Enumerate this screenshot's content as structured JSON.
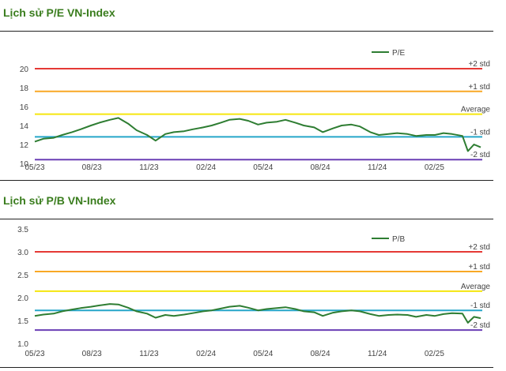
{
  "titles": {
    "pe": "Lịch sử P/E VN-Index",
    "pb": "Lịch sử P/B VN-Index"
  },
  "colors": {
    "series": "#2e7d32",
    "plus2": "#e53935",
    "plus1": "#f9a825",
    "average": "#f5e60f",
    "minus1": "#26a6c9",
    "minus2": "#6a3fb5"
  },
  "chart_data": [
    {
      "type": "line",
      "title": "Lịch sử P/E VN-Index",
      "x_tick_labels": [
        "05/23",
        "08/23",
        "11/23",
        "02/24",
        "05/24",
        "08/24",
        "11/24",
        "02/25"
      ],
      "y_ticks": [
        "20",
        "18",
        "16",
        "14",
        "12",
        "10"
      ],
      "ylim": [
        10,
        21
      ],
      "legend": "top-right",
      "series": [
        {
          "name": "P/E",
          "x": [
            "2023-05-01",
            "2023-05-15",
            "2023-06-01",
            "2023-06-15",
            "2023-07-01",
            "2023-07-15",
            "2023-08-01",
            "2023-08-15",
            "2023-09-01",
            "2023-09-15",
            "2023-10-01",
            "2023-10-15",
            "2023-11-01",
            "2023-11-15",
            "2023-12-01",
            "2023-12-15",
            "2024-01-01",
            "2024-01-15",
            "2024-02-01",
            "2024-02-15",
            "2024-03-01",
            "2024-03-15",
            "2024-04-01",
            "2024-04-15",
            "2024-05-01",
            "2024-05-15",
            "2024-06-01",
            "2024-06-15",
            "2024-07-01",
            "2024-07-15",
            "2024-08-01",
            "2024-08-15",
            "2024-09-01",
            "2024-09-15",
            "2024-10-01",
            "2024-10-15",
            "2024-11-01",
            "2024-11-15",
            "2024-12-01",
            "2024-12-15",
            "2025-01-01",
            "2025-01-15",
            "2025-02-01",
            "2025-02-15",
            "2025-03-01",
            "2025-03-15",
            "2025-04-01",
            "2025-04-10",
            "2025-04-20",
            "2025-05-01"
          ],
          "values": [
            12.3,
            12.6,
            12.7,
            13.0,
            13.3,
            13.6,
            14.0,
            14.3,
            14.6,
            14.8,
            14.2,
            13.5,
            13.0,
            12.4,
            13.1,
            13.3,
            13.4,
            13.6,
            13.8,
            14.0,
            14.3,
            14.6,
            14.7,
            14.5,
            14.1,
            14.3,
            14.4,
            14.6,
            14.3,
            14.0,
            13.8,
            13.3,
            13.7,
            14.0,
            14.1,
            13.9,
            13.3,
            13.0,
            13.1,
            13.2,
            13.1,
            12.9,
            13.0,
            13.0,
            13.2,
            13.1,
            12.9,
            11.3,
            12.0,
            11.7
          ]
        }
      ],
      "reference_lines": [
        {
          "label": "+2 std",
          "value": 20.0
        },
        {
          "label": "+1 std",
          "value": 17.6
        },
        {
          "label": "Average",
          "value": 15.2
        },
        {
          "label": "-1 std",
          "value": 12.8
        },
        {
          "label": "-2 std",
          "value": 10.4
        }
      ]
    },
    {
      "type": "line",
      "title": "Lịch sử P/B VN-Index",
      "x_tick_labels": [
        "05/23",
        "08/23",
        "11/23",
        "02/24",
        "05/24",
        "08/24",
        "11/24",
        "02/25"
      ],
      "y_ticks": [
        "3.5",
        "3.0",
        "2.5",
        "2.0",
        "1.5",
        "1.0"
      ],
      "ylim": [
        1.0,
        3.5
      ],
      "legend": "top-right",
      "series": [
        {
          "name": "P/B",
          "x": [
            "2023-05-01",
            "2023-05-15",
            "2023-06-01",
            "2023-06-15",
            "2023-07-01",
            "2023-07-15",
            "2023-08-01",
            "2023-08-15",
            "2023-09-01",
            "2023-09-15",
            "2023-10-01",
            "2023-10-15",
            "2023-11-01",
            "2023-11-15",
            "2023-12-01",
            "2023-12-15",
            "2024-01-01",
            "2024-01-15",
            "2024-02-01",
            "2024-02-15",
            "2024-03-01",
            "2024-03-15",
            "2024-04-01",
            "2024-04-15",
            "2024-05-01",
            "2024-05-15",
            "2024-06-01",
            "2024-06-15",
            "2024-07-01",
            "2024-07-15",
            "2024-08-01",
            "2024-08-15",
            "2024-09-01",
            "2024-09-15",
            "2024-10-01",
            "2024-10-15",
            "2024-11-01",
            "2024-11-15",
            "2024-12-01",
            "2024-12-15",
            "2025-01-01",
            "2025-01-15",
            "2025-02-01",
            "2025-02-15",
            "2025-03-01",
            "2025-03-15",
            "2025-04-01",
            "2025-04-10",
            "2025-04-20",
            "2025-05-01"
          ],
          "values": [
            1.6,
            1.63,
            1.65,
            1.7,
            1.74,
            1.77,
            1.8,
            1.83,
            1.86,
            1.85,
            1.78,
            1.7,
            1.65,
            1.56,
            1.62,
            1.6,
            1.63,
            1.66,
            1.7,
            1.72,
            1.76,
            1.8,
            1.82,
            1.78,
            1.72,
            1.75,
            1.77,
            1.79,
            1.75,
            1.7,
            1.68,
            1.6,
            1.67,
            1.7,
            1.72,
            1.7,
            1.64,
            1.6,
            1.62,
            1.63,
            1.62,
            1.58,
            1.62,
            1.6,
            1.64,
            1.66,
            1.65,
            1.45,
            1.58,
            1.55
          ]
        }
      ],
      "reference_lines": [
        {
          "label": "+2 std",
          "value": 3.0
        },
        {
          "label": "+1 std",
          "value": 2.57
        },
        {
          "label": "Average",
          "value": 2.14
        },
        {
          "label": "-1 std",
          "value": 1.72
        },
        {
          "label": "-2 std",
          "value": 1.29
        }
      ]
    }
  ]
}
